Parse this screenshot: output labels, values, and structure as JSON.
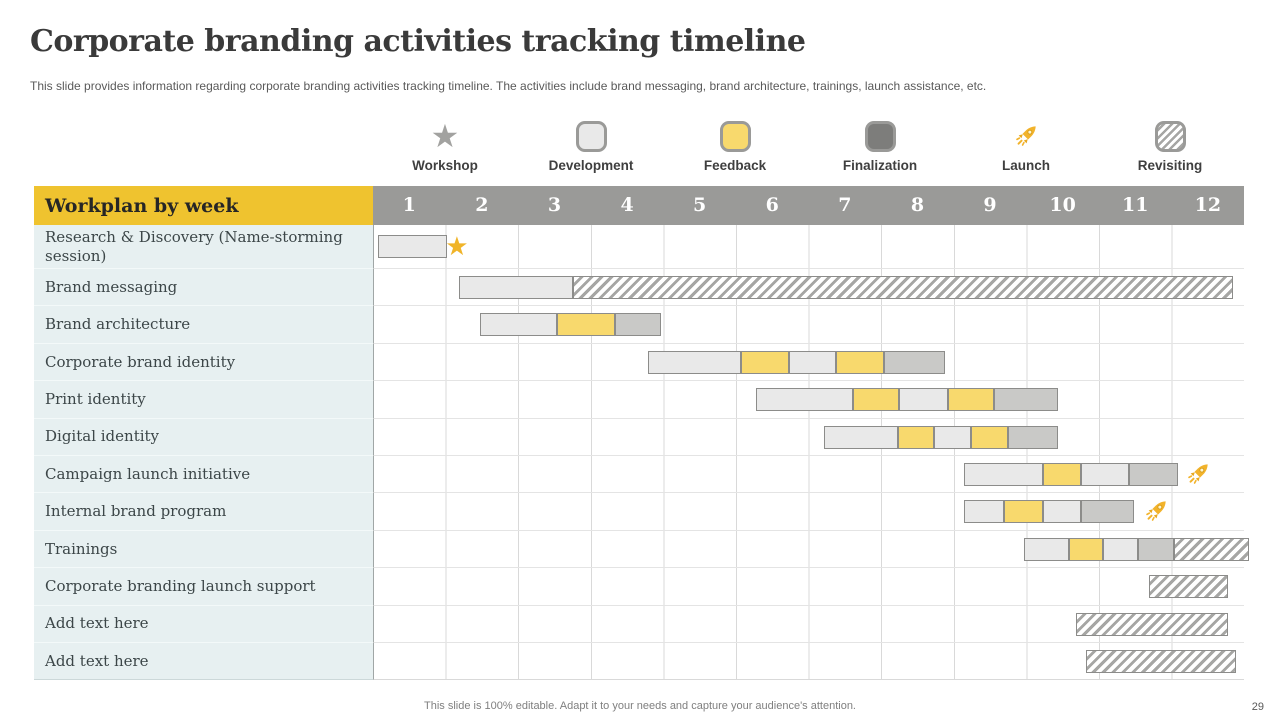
{
  "slide": {
    "title": "Corporate branding activities tracking timeline",
    "subtitle": "This slide provides information regarding corporate branding activities tracking timeline. The activities include brand messaging, brand architecture, trainings, launch assistance, etc.",
    "footer_note": "This slide is 100% editable.  Adapt it to your needs and capture your audience's attention.",
    "page_number": "29"
  },
  "legend": {
    "items": [
      {
        "label": "Workshop",
        "icon": "star-icon",
        "swatch": "workshop"
      },
      {
        "label": "Development",
        "icon": "development-swatch-icon",
        "swatch": "development"
      },
      {
        "label": "Feedback",
        "icon": "feedback-swatch-icon",
        "swatch": "feedback"
      },
      {
        "label": "Finalization",
        "icon": "finalization-swatch-icon",
        "swatch": "finalization"
      },
      {
        "label": "Launch",
        "icon": "rocket-icon",
        "swatch": "launch"
      },
      {
        "label": "Revisiting",
        "icon": "revisiting-swatch-icon",
        "swatch": "revisiting"
      }
    ]
  },
  "colors": {
    "header_yellow": "#efc32f",
    "header_gray": "#9a9a98",
    "label_column_bg": "#e7f0f1",
    "development_fill": "#e9e9e9",
    "feedback_fill": "#f8d96d",
    "finalization_bar_fill": "#c9c9c7",
    "finalization_legend_fill": "#7d7d7b",
    "hatch_stripe": "#a6a6a4",
    "bar_border": "#8c8c8a",
    "star_gold": "#f0b429",
    "rocket_gold": "#f2b32b",
    "legend_star_gray": "#a2a2a0"
  },
  "chart_data": {
    "type": "gantt",
    "title": "Workplan by week",
    "unit": "week",
    "x_range": [
      1,
      12
    ],
    "week_labels": [
      "1",
      "2",
      "3",
      "4",
      "5",
      "6",
      "7",
      "8",
      "9",
      "10",
      "11",
      "12"
    ],
    "legend_entries": [
      "Workshop",
      "Development",
      "Feedback",
      "Finalization",
      "Launch",
      "Revisiting"
    ],
    "rows": [
      {
        "label": "Research & Discovery (Name-storming session)",
        "segments": [
          {
            "type": "development",
            "start": 0.05,
            "end": 1.0
          }
        ],
        "markers": [
          {
            "type": "workshop",
            "week": 1.16
          }
        ]
      },
      {
        "label": "Brand messaging",
        "segments": [
          {
            "type": "development",
            "start": 1.17,
            "end": 2.74
          },
          {
            "type": "revisiting",
            "start": 2.74,
            "end": 11.83
          }
        ]
      },
      {
        "label": "Brand architecture",
        "segments": [
          {
            "type": "development",
            "start": 1.46,
            "end": 2.52
          },
          {
            "type": "feedback",
            "start": 2.52,
            "end": 3.32
          },
          {
            "type": "finalization",
            "start": 3.32,
            "end": 3.95
          }
        ]
      },
      {
        "label": "Corporate brand identity",
        "segments": [
          {
            "type": "development",
            "start": 3.78,
            "end": 5.05
          },
          {
            "type": "feedback",
            "start": 5.05,
            "end": 5.72
          },
          {
            "type": "development",
            "start": 5.72,
            "end": 6.36
          },
          {
            "type": "feedback",
            "start": 6.36,
            "end": 7.02
          },
          {
            "type": "finalization",
            "start": 7.02,
            "end": 7.86
          }
        ]
      },
      {
        "label": "Print identity",
        "segments": [
          {
            "type": "development",
            "start": 5.26,
            "end": 6.6
          },
          {
            "type": "feedback",
            "start": 6.6,
            "end": 7.23
          },
          {
            "type": "development",
            "start": 7.23,
            "end": 7.91
          },
          {
            "type": "feedback",
            "start": 7.91,
            "end": 8.54
          },
          {
            "type": "finalization",
            "start": 8.54,
            "end": 9.42
          }
        ]
      },
      {
        "label": "Digital identity",
        "segments": [
          {
            "type": "development",
            "start": 6.2,
            "end": 7.22
          },
          {
            "type": "feedback",
            "start": 7.22,
            "end": 7.71
          },
          {
            "type": "development",
            "start": 7.71,
            "end": 8.22
          },
          {
            "type": "feedback",
            "start": 8.22,
            "end": 8.73
          },
          {
            "type": "finalization",
            "start": 8.73,
            "end": 9.42
          }
        ]
      },
      {
        "label": "Campaign launch initiative",
        "segments": [
          {
            "type": "development",
            "start": 8.13,
            "end": 9.21
          },
          {
            "type": "feedback",
            "start": 9.21,
            "end": 9.74
          },
          {
            "type": "development",
            "start": 9.74,
            "end": 10.4
          },
          {
            "type": "finalization",
            "start": 10.4,
            "end": 11.07
          }
        ],
        "markers": [
          {
            "type": "launch",
            "week": 11.35
          }
        ]
      },
      {
        "label": "Internal brand program",
        "segments": [
          {
            "type": "development",
            "start": 8.13,
            "end": 8.68
          },
          {
            "type": "feedback",
            "start": 8.68,
            "end": 9.21
          },
          {
            "type": "development",
            "start": 9.21,
            "end": 9.74
          },
          {
            "type": "finalization",
            "start": 9.74,
            "end": 10.47
          }
        ],
        "markers": [
          {
            "type": "launch",
            "week": 10.77
          }
        ]
      },
      {
        "label": "Trainings",
        "segments": [
          {
            "type": "development",
            "start": 8.95,
            "end": 9.57
          },
          {
            "type": "feedback",
            "start": 9.57,
            "end": 10.04
          },
          {
            "type": "development",
            "start": 10.04,
            "end": 10.52
          },
          {
            "type": "finalization",
            "start": 10.52,
            "end": 11.02
          },
          {
            "type": "revisiting",
            "start": 11.02,
            "end": 12.05
          }
        ]
      },
      {
        "label": "Corporate branding launch support",
        "segments": [
          {
            "type": "revisiting",
            "start": 10.67,
            "end": 11.76
          }
        ]
      },
      {
        "label": "Add text here",
        "placeholder": true,
        "segments": [
          {
            "type": "revisiting",
            "start": 9.67,
            "end": 11.76
          }
        ]
      },
      {
        "label": "Add text here",
        "placeholder": true,
        "segments": [
          {
            "type": "revisiting",
            "start": 9.81,
            "end": 11.87
          }
        ]
      }
    ]
  }
}
